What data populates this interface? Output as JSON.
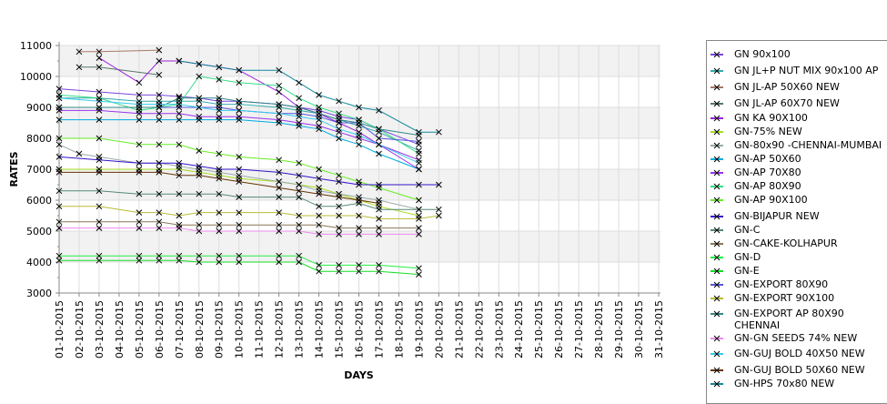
{
  "chart_data": {
    "type": "line",
    "xlabel": "DAYS",
    "ylabel": "RATES",
    "ylim": [
      3000,
      11000
    ],
    "yticks": [
      3000,
      4000,
      5000,
      6000,
      7000,
      8000,
      9000,
      10000,
      11000
    ],
    "xticks": [
      "01-10-2015",
      "02-10-2015",
      "03-10-2015",
      "04-10-2015",
      "05-10-2015",
      "06-10-2015",
      "07-10-2015",
      "08-10-2015",
      "09-10-2015",
      "10-10-2015",
      "11-10-2015",
      "12-10-2015",
      "13-10-2015",
      "14-10-2015",
      "15-10-2015",
      "16-10-2015",
      "17-10-2015",
      "18-10-2015",
      "19-10-2015",
      "20-10-2015",
      "21-10-2015",
      "22-10-2015",
      "23-10-2015",
      "24-10-2015",
      "25-10-2015",
      "26-10-2015",
      "27-10-2015",
      "28-10-2015",
      "29-10-2015",
      "30-10-2015",
      "31-10-2015"
    ],
    "x_days": [
      1,
      2,
      3,
      5,
      6,
      7,
      8,
      9,
      10,
      12,
      13,
      14,
      15,
      16,
      17,
      19,
      20
    ],
    "grid": true,
    "legend_position": "right",
    "series": [
      {
        "name": "GN 90x100",
        "color": "#7744dd",
        "values": [
          9600,
          null,
          9500,
          9400,
          9400,
          9350,
          9300,
          9200,
          9200,
          9100,
          9000,
          8900,
          8700,
          8600,
          8300,
          7800,
          null
        ]
      },
      {
        "name": "GN JL+P NUT MIX 90x100 AP",
        "color": "#33aaaa",
        "values": [
          9300,
          null,
          9300,
          9200,
          9200,
          9200,
          9200,
          9100,
          9100,
          9000,
          8900,
          8800,
          8600,
          8400,
          8200,
          7600,
          null
        ]
      },
      {
        "name": "GN JL-AP 50X60 NEW",
        "color": "#aa7766",
        "values": [
          null,
          10800,
          10800,
          null,
          10850,
          null,
          null,
          null,
          null,
          null,
          null,
          null,
          null,
          null,
          null,
          null,
          null
        ]
      },
      {
        "name": "GN JL-AP 60X70 NEW",
        "color": "#557766",
        "values": [
          null,
          10300,
          10300,
          null,
          10050,
          null,
          null,
          null,
          null,
          null,
          null,
          null,
          null,
          null,
          null,
          null,
          null
        ]
      },
      {
        "name": "GN KA 90X100",
        "color": "#9922dd",
        "values": [
          null,
          null,
          10600,
          9800,
          10500,
          10500,
          10400,
          10300,
          10200,
          9500,
          9000,
          8800,
          8500,
          8200,
          7800,
          7300,
          null
        ]
      },
      {
        "name": "GN-75% NEW",
        "color": "#aadd22",
        "values": [
          7000,
          null,
          7000,
          7000,
          7000,
          7000,
          6900,
          6800,
          6700,
          6600,
          6500,
          6400,
          6200,
          6000,
          5800,
          5500,
          null
        ]
      },
      {
        "name": "GN-80x90 -CHENNAI-MUMBAI",
        "color": "#99aaaa",
        "values": [
          7800,
          7500,
          7400,
          7200,
          7200,
          7100,
          7000,
          6900,
          6800,
          6600,
          6500,
          6300,
          6200,
          6100,
          6000,
          5700,
          null
        ]
      },
      {
        "name": "GN-AP 50X60",
        "color": "#00aadd",
        "values": [
          8600,
          null,
          8600,
          8600,
          8600,
          8600,
          8600,
          8600,
          8600,
          8500,
          8400,
          8300,
          8000,
          7800,
          7500,
          7000,
          null
        ]
      },
      {
        "name": "GN-AP 70X80",
        "color": "#9933ee",
        "values": [
          8900,
          null,
          8900,
          8800,
          8800,
          8800,
          8700,
          8700,
          8700,
          8600,
          8500,
          8400,
          8200,
          8000,
          7800,
          7000,
          null
        ]
      },
      {
        "name": "GN-AP 80X90",
        "color": "#33dd88",
        "values": [
          9400,
          null,
          9300,
          8900,
          9000,
          9100,
          10000,
          9900,
          9800,
          9700,
          9300,
          9000,
          8800,
          8600,
          8300,
          7500,
          null
        ]
      },
      {
        "name": "GN-AP 90X100",
        "color": "#66ee22",
        "values": [
          8000,
          null,
          8000,
          7800,
          7800,
          7800,
          7600,
          7500,
          7400,
          7300,
          7200,
          7000,
          6800,
          6600,
          6400,
          6000,
          null
        ]
      },
      {
        "name": "GN-BIJAPUR NEW",
        "color": "#3311cc",
        "values": [
          7400,
          null,
          7300,
          7200,
          7200,
          7200,
          7100,
          7000,
          7000,
          6900,
          6800,
          6700,
          6600,
          6500,
          6500,
          6500,
          6500
        ]
      },
      {
        "name": "GN-C",
        "color": "#558877",
        "values": [
          6300,
          null,
          6300,
          6200,
          6200,
          6200,
          6200,
          6200,
          6100,
          6100,
          6100,
          5800,
          5800,
          5900,
          5700,
          5700,
          5700
        ]
      },
      {
        "name": "GN-CAKE-KOLHAPUR",
        "color": "#887755",
        "values": [
          5300,
          null,
          5300,
          5300,
          5300,
          5200,
          5200,
          5200,
          5200,
          5200,
          5200,
          5200,
          5100,
          5100,
          5100,
          5100,
          null
        ]
      },
      {
        "name": "GN-D",
        "color": "#22ee44",
        "values": [
          4200,
          null,
          4200,
          4200,
          4200,
          4200,
          4200,
          4200,
          4200,
          4200,
          4200,
          3900,
          3900,
          3900,
          3900,
          3800,
          null
        ]
      },
      {
        "name": "GN-E",
        "color": "#11dd22",
        "values": [
          4050,
          null,
          4050,
          4050,
          4050,
          4050,
          4000,
          4000,
          4000,
          4000,
          4000,
          3700,
          3700,
          3700,
          3700,
          3600,
          null
        ]
      },
      {
        "name": "GN-EXPORT 80X90",
        "color": "#5555dd",
        "values": [
          9000,
          null,
          9000,
          9000,
          9000,
          9000,
          9000,
          9000,
          8900,
          8800,
          8800,
          8700,
          8500,
          8500,
          8000,
          7900,
          null
        ]
      },
      {
        "name": "GN-EXPORT 90X100",
        "color": "#bbbb33",
        "values": [
          5800,
          null,
          5800,
          5600,
          5600,
          5500,
          5600,
          5600,
          5600,
          5600,
          5500,
          5500,
          5500,
          5500,
          5400,
          5400,
          5500
        ]
      },
      {
        "name": "GN-EXPORT AP 80X90 CHENNAI",
        "color": "#338888",
        "values": [
          9000,
          null,
          9000,
          9000,
          9000,
          9300,
          9300,
          9300,
          9200,
          9100,
          9000,
          8800,
          8600,
          8500,
          8300,
          8100,
          null
        ]
      },
      {
        "name": "GN-GN SEEDS 74% NEW",
        "color": "#ee88ee",
        "values": [
          5100,
          null,
          5100,
          5100,
          5100,
          5100,
          5000,
          5000,
          5000,
          5000,
          5000,
          4900,
          4900,
          4900,
          4900,
          4900,
          null
        ]
      },
      {
        "name": "GN-GUJ BOLD 40X50 NEW",
        "color": "#33ccee",
        "values": [
          9300,
          null,
          9200,
          9100,
          9100,
          9100,
          9000,
          8900,
          8900,
          8800,
          8700,
          8600,
          8300,
          8100,
          7800,
          7200,
          null
        ]
      },
      {
        "name": "GN-GUJ BOLD 50X60 NEW",
        "color": "#663300",
        "values": [
          6900,
          null,
          6900,
          6900,
          6900,
          6800,
          6800,
          6700,
          6600,
          6400,
          6300,
          6200,
          6100,
          6000,
          5900,
          null,
          null
        ]
      },
      {
        "name": "GN-HPS  70x80 NEW",
        "color": "#118899",
        "values": [
          null,
          null,
          null,
          null,
          null,
          10500,
          10400,
          10300,
          10200,
          10200,
          9800,
          9400,
          9200,
          9000,
          8900,
          8200,
          8200
        ]
      }
    ]
  }
}
